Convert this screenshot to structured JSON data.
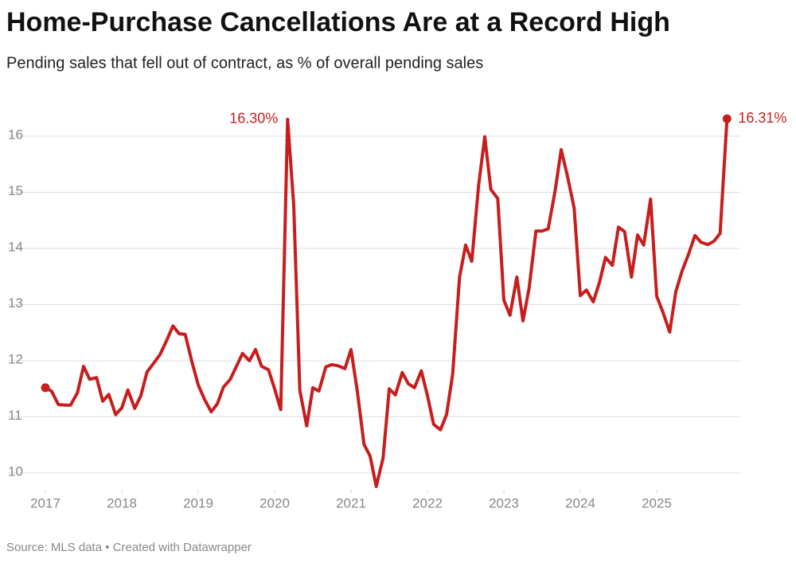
{
  "chart_data": {
    "type": "line",
    "title": "Home-Purchase Cancellations Are at a Record High",
    "subtitle": "Pending sales that fell out of contract, as % of overall pending sales",
    "source": "Source: MLS data • Created with Datawrapper",
    "color": "#c71e1d",
    "grid": true,
    "x": [
      2017,
      2017.08,
      2017.17,
      2017.25,
      2017.33,
      2017.42,
      2017.5,
      2017.58,
      2017.67,
      2017.75,
      2017.83,
      2017.92,
      2018,
      2018.08,
      2018.17,
      2018.25,
      2018.33,
      2018.42,
      2018.5,
      2018.58,
      2018.67,
      2018.75,
      2018.83,
      2018.92,
      2019,
      2019.08,
      2019.17,
      2019.25,
      2019.33,
      2019.42,
      2019.5,
      2019.58,
      2019.67,
      2019.75,
      2019.83,
      2019.92,
      2020,
      2020.08,
      2020.17,
      2020.25,
      2020.33,
      2020.42,
      2020.5,
      2020.58,
      2020.67,
      2020.75,
      2020.83,
      2020.92,
      2021,
      2021.08,
      2021.17,
      2021.25,
      2021.33,
      2021.42,
      2021.5,
      2021.58,
      2021.67,
      2021.75,
      2021.83,
      2021.92,
      2022,
      2022.08,
      2022.17,
      2022.25,
      2022.33,
      2022.42,
      2022.5,
      2022.58,
      2022.67,
      2022.75,
      2022.83,
      2022.92,
      2023,
      2023.08,
      2023.17,
      2023.25,
      2023.33,
      2023.42,
      2023.5,
      2023.58,
      2023.67,
      2023.75,
      2023.83,
      2023.92,
      2024,
      2024.08,
      2024.17,
      2024.25,
      2024.33,
      2024.42,
      2024.5,
      2024.58,
      2024.67,
      2024.75,
      2024.83,
      2024.92,
      2025,
      2025.08,
      2025.17,
      2025.25,
      2025.33,
      2025.42,
      2025.5,
      2025.58,
      2025.67,
      2025.75,
      2025.83,
      2025.92
    ],
    "values": [
      11.52,
      11.46,
      11.22,
      11.21,
      11.21,
      11.43,
      11.9,
      11.67,
      11.7,
      11.28,
      11.4,
      11.04,
      11.16,
      11.48,
      11.15,
      11.38,
      11.8,
      11.96,
      12.11,
      12.34,
      12.62,
      12.48,
      12.47,
      11.97,
      11.57,
      11.32,
      11.09,
      11.23,
      11.53,
      11.67,
      11.9,
      12.13,
      12.0,
      12.2,
      11.9,
      11.84,
      11.5,
      11.13,
      16.3,
      14.77,
      11.47,
      10.84,
      11.52,
      11.46,
      11.89,
      11.93,
      11.91,
      11.86,
      12.2,
      11.48,
      10.51,
      10.3,
      9.76,
      10.27,
      11.5,
      11.39,
      11.79,
      11.59,
      11.52,
      11.82,
      11.38,
      10.87,
      10.77,
      11.04,
      11.76,
      13.49,
      14.06,
      13.77,
      15.13,
      15.99,
      15.05,
      14.89,
      13.08,
      12.81,
      13.49,
      12.71,
      13.29,
      14.31,
      14.31,
      14.35,
      15.02,
      15.76,
      15.3,
      14.72,
      13.16,
      13.26,
      13.05,
      13.39,
      13.84,
      13.7,
      14.38,
      14.3,
      13.49,
      14.24,
      14.06,
      14.88,
      13.15,
      12.87,
      12.51,
      13.23,
      13.59,
      13.91,
      14.23,
      14.11,
      14.07,
      14.13,
      14.27,
      16.31
    ],
    "value_labels": [
      null,
      null,
      null,
      null,
      null,
      null,
      null,
      null,
      null,
      null,
      null,
      null,
      null,
      null,
      null,
      null,
      null,
      null,
      null,
      null,
      null,
      null,
      null,
      null,
      null,
      null,
      null,
      null,
      null,
      null,
      null,
      null,
      null,
      null,
      null,
      null,
      null,
      null,
      "16.30%",
      null,
      null,
      null,
      null,
      null,
      null,
      null,
      null,
      null,
      null,
      null,
      null,
      null,
      null,
      null,
      null,
      null,
      null,
      null,
      null,
      null,
      null,
      null,
      null,
      null,
      null,
      null,
      null,
      null,
      null,
      null,
      null,
      null,
      null,
      null,
      null,
      null,
      null,
      null,
      null,
      null,
      null,
      null,
      null,
      null,
      null,
      null,
      null,
      null,
      null,
      null,
      null,
      null,
      null,
      null,
      null,
      null,
      null,
      null,
      null,
      null,
      null,
      null,
      null,
      null,
      null,
      null,
      null,
      "16.31%"
    ],
    "xlim": [
      2017,
      2026
    ],
    "xticks": [
      2017,
      2018,
      2019,
      2020,
      2021,
      2022,
      2023,
      2024,
      2025
    ],
    "ylim": [
      9.7,
      16.4
    ],
    "yticks": [
      10,
      11,
      12,
      13,
      14,
      15,
      16
    ]
  }
}
